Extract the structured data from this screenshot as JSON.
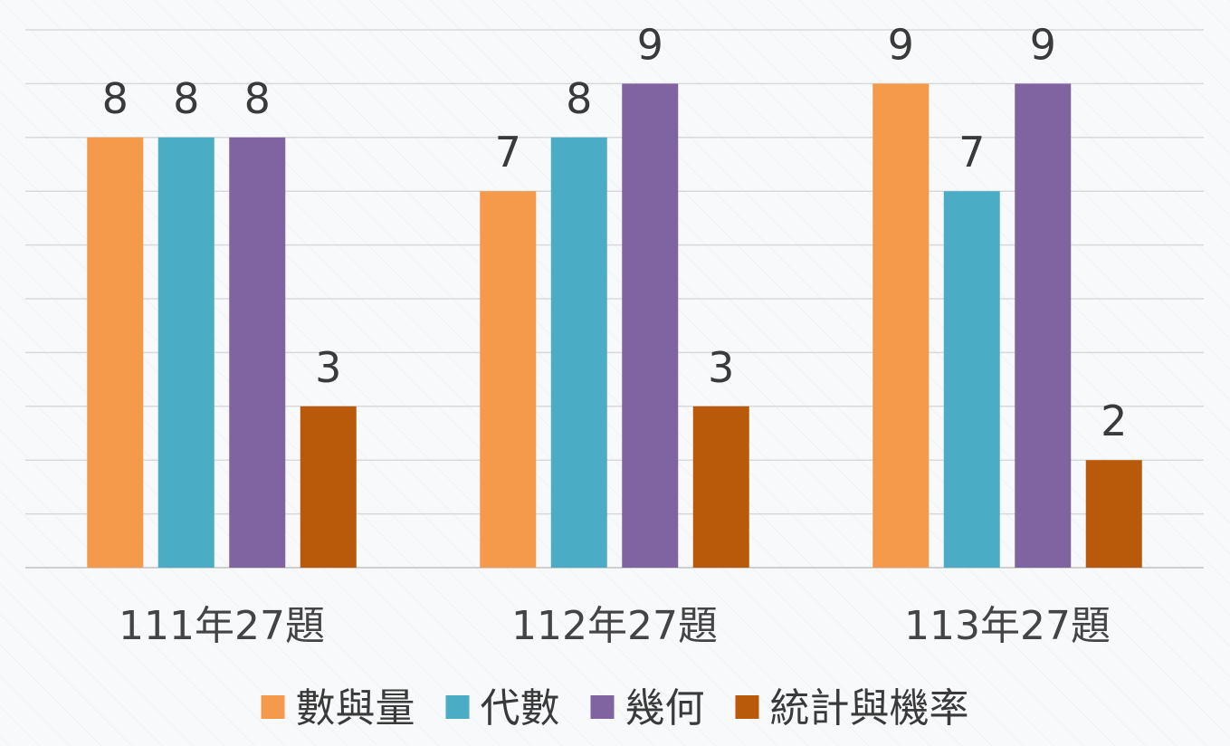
{
  "chart_data": {
    "type": "bar",
    "title": "",
    "xlabel": "",
    "ylabel": "",
    "categories": [
      "111年27題",
      "112年27題",
      "113年27題"
    ],
    "series": [
      {
        "name": "數與量",
        "values": [
          8,
          7,
          9
        ],
        "color": "#f59a4a"
      },
      {
        "name": "代數",
        "values": [
          8,
          8,
          7
        ],
        "color": "#4bacc6"
      },
      {
        "name": "幾何",
        "values": [
          8,
          9,
          9
        ],
        "color": "#8064a2"
      },
      {
        "name": "統計與機率",
        "values": [
          3,
          3,
          2
        ],
        "color": "#b85a0a"
      }
    ],
    "ylim": [
      0,
      10
    ],
    "grid": true,
    "data_labels": true,
    "legend_position": "bottom"
  }
}
